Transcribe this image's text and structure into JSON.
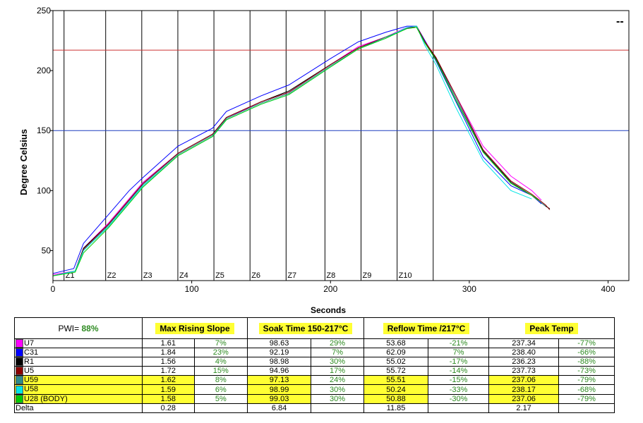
{
  "chart_data": {
    "type": "line",
    "title": "",
    "xlabel": "Seconds",
    "ylabel": "Degree Celsius",
    "xlim": [
      0,
      415
    ],
    "ylim": [
      25,
      250
    ],
    "xticks": [
      0,
      100,
      200,
      300,
      400
    ],
    "yticks": [
      50,
      100,
      150,
      200,
      250
    ],
    "hlines": [
      {
        "value": 217,
        "color": "#cc3333"
      },
      {
        "value": 150,
        "color": "#1f3fbf"
      }
    ],
    "zones": [
      {
        "label": "Z1",
        "x": 8
      },
      {
        "label": "Z2",
        "x": 38
      },
      {
        "label": "Z3",
        "x": 64
      },
      {
        "label": "Z4",
        "x": 90
      },
      {
        "label": "Z5",
        "x": 116
      },
      {
        "label": "Z6",
        "x": 142
      },
      {
        "label": "Z7",
        "x": 168
      },
      {
        "label": "Z8",
        "x": 196
      },
      {
        "label": "Z9",
        "x": 222
      },
      {
        "label": "Z10",
        "x": 248
      },
      {
        "label": "",
        "x": 274
      }
    ],
    "corner_mark": "--",
    "series": [
      {
        "name": "U7",
        "color": "#ff00ff",
        "points": [
          [
            0,
            30
          ],
          [
            16,
            33
          ],
          [
            22,
            52
          ],
          [
            40,
            73
          ],
          [
            65,
            107
          ],
          [
            90,
            131
          ],
          [
            115,
            147
          ],
          [
            125,
            160
          ],
          [
            150,
            174
          ],
          [
            170,
            182
          ],
          [
            200,
            205
          ],
          [
            220,
            220
          ],
          [
            240,
            228
          ],
          [
            253,
            235
          ],
          [
            262,
            237
          ],
          [
            268,
            225
          ],
          [
            276,
            210
          ],
          [
            290,
            180
          ],
          [
            310,
            137
          ],
          [
            330,
            112
          ],
          [
            345,
            100
          ],
          [
            352,
            92
          ]
        ]
      },
      {
        "name": "C31",
        "color": "#0000ff",
        "points": [
          [
            0,
            31
          ],
          [
            15,
            35
          ],
          [
            22,
            56
          ],
          [
            40,
            80
          ],
          [
            55,
            100
          ],
          [
            65,
            111
          ],
          [
            90,
            137
          ],
          [
            115,
            152
          ],
          [
            125,
            166
          ],
          [
            150,
            179
          ],
          [
            170,
            188
          ],
          [
            200,
            210
          ],
          [
            220,
            224
          ],
          [
            240,
            232
          ],
          [
            255,
            237
          ],
          [
            262,
            237
          ],
          [
            268,
            225
          ],
          [
            276,
            208
          ],
          [
            290,
            175
          ],
          [
            310,
            128
          ],
          [
            330,
            104
          ],
          [
            345,
            96
          ],
          [
            352,
            89
          ]
        ]
      },
      {
        "name": "R1",
        "color": "#000000",
        "points": [
          [
            0,
            29
          ],
          [
            16,
            33
          ],
          [
            22,
            52
          ],
          [
            40,
            72
          ],
          [
            65,
            106
          ],
          [
            90,
            131
          ],
          [
            115,
            147
          ],
          [
            125,
            161
          ],
          [
            150,
            174
          ],
          [
            170,
            183
          ],
          [
            200,
            205
          ],
          [
            220,
            219
          ],
          [
            240,
            228
          ],
          [
            255,
            235
          ],
          [
            262,
            237
          ],
          [
            268,
            224
          ],
          [
            276,
            210
          ],
          [
            290,
            178
          ],
          [
            310,
            133
          ],
          [
            330,
            107
          ],
          [
            345,
            96
          ],
          [
            355,
            87
          ],
          [
            358,
            85
          ]
        ]
      },
      {
        "name": "U5",
        "color": "#8b0000",
        "points": [
          [
            0,
            29
          ],
          [
            16,
            33
          ],
          [
            22,
            51
          ],
          [
            40,
            72
          ],
          [
            65,
            106
          ],
          [
            90,
            131
          ],
          [
            115,
            147
          ],
          [
            125,
            161
          ],
          [
            150,
            174
          ],
          [
            170,
            182
          ],
          [
            200,
            205
          ],
          [
            220,
            219
          ],
          [
            240,
            228
          ],
          [
            255,
            235
          ],
          [
            262,
            237
          ],
          [
            268,
            224
          ],
          [
            276,
            211
          ],
          [
            290,
            180
          ],
          [
            310,
            134
          ],
          [
            330,
            108
          ],
          [
            345,
            97
          ],
          [
            355,
            88
          ],
          [
            358,
            84
          ]
        ]
      },
      {
        "name": "U59",
        "color": "#2e8b8b",
        "points": [
          [
            0,
            29
          ],
          [
            16,
            33
          ],
          [
            22,
            50
          ],
          [
            40,
            71
          ],
          [
            65,
            105
          ],
          [
            90,
            130
          ],
          [
            115,
            146
          ],
          [
            125,
            160
          ],
          [
            150,
            173
          ],
          [
            170,
            181
          ],
          [
            200,
            204
          ],
          [
            220,
            218
          ],
          [
            240,
            228
          ],
          [
            255,
            235
          ],
          [
            262,
            236
          ],
          [
            268,
            223
          ],
          [
            276,
            209
          ],
          [
            290,
            178
          ],
          [
            310,
            132
          ],
          [
            330,
            106
          ],
          [
            345,
            96
          ],
          [
            355,
            87
          ]
        ]
      },
      {
        "name": "U58",
        "color": "#00e5e5",
        "points": [
          [
            0,
            29
          ],
          [
            16,
            33
          ],
          [
            22,
            50
          ],
          [
            40,
            70
          ],
          [
            65,
            104
          ],
          [
            90,
            129
          ],
          [
            115,
            145
          ],
          [
            125,
            159
          ],
          [
            150,
            172
          ],
          [
            170,
            180
          ],
          [
            200,
            203
          ],
          [
            220,
            218
          ],
          [
            240,
            227
          ],
          [
            255,
            236
          ],
          [
            262,
            237
          ],
          [
            268,
            221
          ],
          [
            276,
            205
          ],
          [
            290,
            170
          ],
          [
            310,
            125
          ],
          [
            330,
            100
          ],
          [
            345,
            93
          ]
        ]
      },
      {
        "name": "U28 (BODY)",
        "color": "#00cc00",
        "points": [
          [
            0,
            29
          ],
          [
            16,
            32
          ],
          [
            22,
            48
          ],
          [
            40,
            69
          ],
          [
            65,
            103
          ],
          [
            90,
            129
          ],
          [
            115,
            145
          ],
          [
            125,
            159
          ],
          [
            150,
            172
          ],
          [
            170,
            180
          ],
          [
            200,
            203
          ],
          [
            220,
            218
          ],
          [
            240,
            227
          ],
          [
            255,
            235
          ],
          [
            262,
            236
          ],
          [
            268,
            223
          ],
          [
            276,
            209
          ],
          [
            290,
            176
          ],
          [
            310,
            132
          ],
          [
            330,
            106
          ],
          [
            345,
            96
          ],
          [
            350,
            92
          ]
        ]
      }
    ]
  },
  "table": {
    "pwi_label": "PWI=",
    "pwi_value": "88%",
    "headers": [
      "Max Rising Slope",
      "Soak Time 150-217°C",
      "Reflow Time /217°C",
      "Peak Temp"
    ],
    "rows": [
      {
        "name": "U7",
        "color": "#ff00ff",
        "vals": [
          "1.61",
          "7%",
          "98.63",
          "29%",
          "53.68",
          "-21%",
          "237.34",
          "-77%"
        ],
        "hl": false
      },
      {
        "name": "C31",
        "color": "#0000ff",
        "vals": [
          "1.84",
          "23%",
          "92.19",
          "7%",
          "62.09",
          "7%",
          "238.40",
          "-66%"
        ],
        "hl": false
      },
      {
        "name": "R1",
        "color": "#000000",
        "vals": [
          "1.56",
          "4%",
          "98.98",
          "30%",
          "55.02",
          "-17%",
          "236.23",
          "-88%"
        ],
        "hl": false
      },
      {
        "name": "U5",
        "color": "#8b0000",
        "vals": [
          "1.72",
          "15%",
          "94.96",
          "17%",
          "55.72",
          "-14%",
          "237.73",
          "-73%"
        ],
        "hl": false
      },
      {
        "name": "U59",
        "color": "#2e8b8b",
        "vals": [
          "1.62",
          "8%",
          "97.13",
          "24%",
          "55.51",
          "-15%",
          "237.06",
          "-79%"
        ],
        "hl": true
      },
      {
        "name": "U58",
        "color": "#00e5e5",
        "vals": [
          "1.59",
          "6%",
          "98.99",
          "30%",
          "50.24",
          "-33%",
          "238.17",
          "-68%"
        ],
        "hl": true
      },
      {
        "name": "U28 (BODY)",
        "color": "#00cc00",
        "vals": [
          "1.58",
          "5%",
          "99.03",
          "30%",
          "50.88",
          "-30%",
          "237.06",
          "-79%"
        ],
        "hl": true
      }
    ],
    "delta": {
      "name": "Delta",
      "vals": [
        "0.28",
        "",
        "6.84",
        "",
        "11.85",
        "",
        "2.17",
        ""
      ]
    }
  }
}
